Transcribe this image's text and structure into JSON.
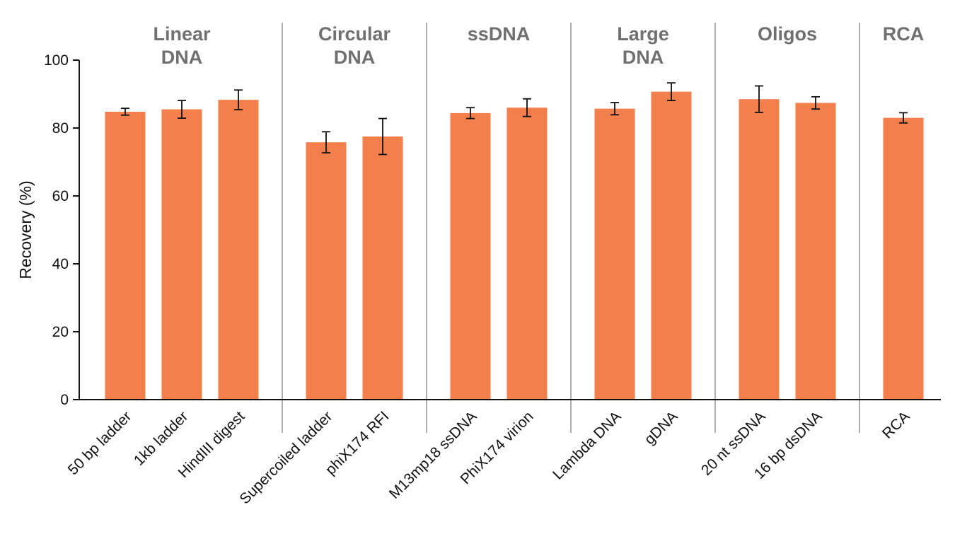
{
  "colors": {
    "bar": "#F27F4C",
    "group_label": "#707070",
    "divider": "#9a9a9a",
    "axis": "#111111",
    "error_bar": "#111111"
  },
  "chart_data": {
    "type": "bar",
    "title": "",
    "xlabel": "",
    "ylabel": "Recovery (%)",
    "ylim": [
      0,
      100
    ],
    "yticks": [
      0,
      20,
      40,
      60,
      80,
      100
    ],
    "grid": false,
    "legend": "none",
    "categories": [
      "50 bp ladder",
      "1kb ladder",
      "HindIII digest",
      "Supercoiled ladder",
      "phiX174 RFI",
      "M13mp18 ssDNA",
      "PhiX174 virion",
      "Lambda DNA",
      "gDNA",
      "20 nt ssDNA",
      "16 bp dsDNA",
      "RCA"
    ],
    "values": [
      84.8,
      85.5,
      88.3,
      75.8,
      77.5,
      84.4,
      86.0,
      85.7,
      90.7,
      88.5,
      87.4,
      83.0
    ],
    "errors": [
      1.0,
      2.6,
      2.9,
      3.1,
      5.3,
      1.6,
      2.6,
      1.8,
      2.6,
      3.9,
      1.8,
      1.5
    ],
    "groups": [
      {
        "label_lines": [
          "Linear",
          "DNA"
        ],
        "categories": [
          "50 bp ladder",
          "1kb ladder",
          "HindIII digest"
        ]
      },
      {
        "label_lines": [
          "Circular",
          "DNA"
        ],
        "categories": [
          "Supercoiled ladder",
          "phiX174 RFI"
        ]
      },
      {
        "label_lines": [
          "ssDNA"
        ],
        "categories": [
          "M13mp18 ssDNA",
          "PhiX174 virion"
        ]
      },
      {
        "label_lines": [
          "Large",
          "DNA"
        ],
        "categories": [
          "Lambda DNA",
          "gDNA"
        ]
      },
      {
        "label_lines": [
          "Oligos"
        ],
        "categories": [
          "20 nt ssDNA",
          "16 bp dsDNA"
        ]
      },
      {
        "label_lines": [
          "RCA"
        ],
        "categories": [
          "RCA"
        ]
      }
    ]
  }
}
